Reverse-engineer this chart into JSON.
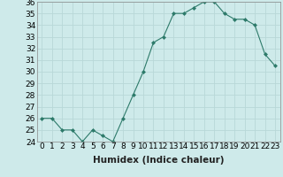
{
  "x": [
    0,
    1,
    2,
    3,
    4,
    5,
    6,
    7,
    8,
    9,
    10,
    11,
    12,
    13,
    14,
    15,
    16,
    17,
    18,
    19,
    20,
    21,
    22,
    23
  ],
  "y": [
    26,
    26,
    25,
    25,
    24,
    25,
    24.5,
    24,
    26,
    28,
    30,
    32.5,
    33,
    35,
    35,
    35.5,
    36,
    36,
    35,
    34.5,
    34.5,
    34,
    31.5,
    30.5
  ],
  "xlabel": "Humidex (Indice chaleur)",
  "ylim": [
    24,
    36
  ],
  "xlim": [
    -0.5,
    23.5
  ],
  "yticks": [
    24,
    25,
    26,
    27,
    28,
    29,
    30,
    31,
    32,
    33,
    34,
    35,
    36
  ],
  "xtick_labels": [
    "0",
    "1",
    "2",
    "3",
    "4",
    "5",
    "6",
    "7",
    "8",
    "9",
    "10",
    "11",
    "12",
    "13",
    "14",
    "15",
    "16",
    "17",
    "18",
    "19",
    "20",
    "21",
    "22",
    "23"
  ],
  "line_color": "#2d7a6a",
  "marker": "D",
  "marker_size": 2.0,
  "bg_color": "#ceeaea",
  "grid_color": "#b8d8d8",
  "label_fontsize": 7.5,
  "tick_fontsize": 6.5
}
